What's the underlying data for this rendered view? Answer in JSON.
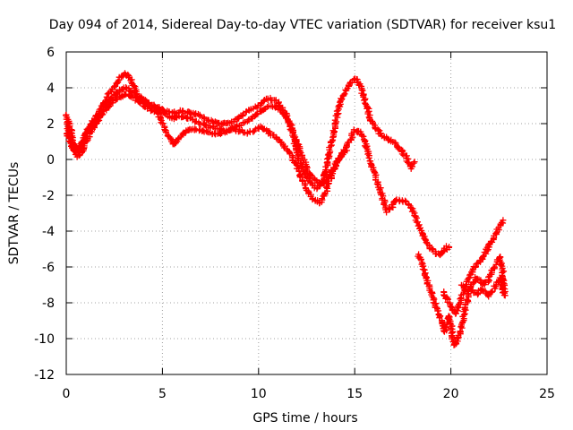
{
  "chart_data": {
    "type": "scatter",
    "title": "Day 094 of 2014, Sidereal Day-to-day VTEC variation (SDTVAR) for receiver ksu1",
    "xlabel": "GPS time / hours",
    "ylabel": "SDTVAR / TECUs",
    "xlim": [
      0,
      25
    ],
    "ylim": [
      -12,
      6
    ],
    "xticks": [
      0,
      5,
      10,
      15,
      20,
      25
    ],
    "yticks": [
      -12,
      -10,
      -8,
      -6,
      -4,
      -2,
      0,
      2,
      4,
      6
    ],
    "grid": true,
    "marker": "plus",
    "color": "#ff0000",
    "series": [
      {
        "name": "track-1",
        "points": [
          [
            0.0,
            2.5
          ],
          [
            0.2,
            1.8
          ],
          [
            0.4,
            0.9
          ],
          [
            0.6,
            0.5
          ],
          [
            0.8,
            0.8
          ],
          [
            1.0,
            1.4
          ],
          [
            1.3,
            2.0
          ],
          [
            1.6,
            2.4
          ],
          [
            1.9,
            3.0
          ],
          [
            2.2,
            3.6
          ],
          [
            2.5,
            4.1
          ],
          [
            2.8,
            4.6
          ],
          [
            3.1,
            4.8
          ],
          [
            3.4,
            4.4
          ],
          [
            3.7,
            3.6
          ],
          [
            4.0,
            3.3
          ],
          [
            4.4,
            3.1
          ],
          [
            4.8,
            2.9
          ],
          [
            5.2,
            2.7
          ],
          [
            5.6,
            2.6
          ],
          [
            6.0,
            2.7
          ],
          [
            6.4,
            2.6
          ],
          [
            6.8,
            2.5
          ],
          [
            7.2,
            2.3
          ],
          [
            7.6,
            2.1
          ],
          [
            8.0,
            2.0
          ],
          [
            8.4,
            2.0
          ],
          [
            8.8,
            2.2
          ],
          [
            9.2,
            2.5
          ],
          [
            9.6,
            2.8
          ],
          [
            10.0,
            3.0
          ],
          [
            10.3,
            3.3
          ],
          [
            10.6,
            3.4
          ],
          [
            11.0,
            3.2
          ],
          [
            11.4,
            2.6
          ],
          [
            11.8,
            1.3
          ],
          [
            12.1,
            0.0
          ],
          [
            12.4,
            -0.8
          ],
          [
            12.7,
            -1.3
          ],
          [
            13.0,
            -1.6
          ],
          [
            13.3,
            -1.4
          ],
          [
            13.5,
            -0.6
          ],
          [
            13.7,
            0.5
          ],
          [
            13.9,
            1.5
          ],
          [
            14.1,
            2.6
          ],
          [
            14.3,
            3.3
          ],
          [
            14.6,
            4.0
          ],
          [
            14.9,
            4.4
          ],
          [
            15.1,
            4.5
          ],
          [
            15.3,
            4.1
          ],
          [
            15.5,
            3.4
          ],
          [
            15.7,
            2.7
          ],
          [
            15.9,
            2.0
          ],
          [
            16.2,
            1.6
          ],
          [
            16.5,
            1.3
          ],
          [
            16.8,
            1.1
          ],
          [
            17.1,
            0.9
          ],
          [
            17.4,
            0.5
          ],
          [
            17.7,
            0.1
          ],
          [
            17.9,
            -0.5
          ],
          [
            18.1,
            -0.1
          ]
        ]
      },
      {
        "name": "track-2",
        "points": [
          [
            0.0,
            1.5
          ],
          [
            0.2,
            1.0
          ],
          [
            0.4,
            0.5
          ],
          [
            0.6,
            0.2
          ],
          [
            0.8,
            0.4
          ],
          [
            1.0,
            0.9
          ],
          [
            1.3,
            1.6
          ],
          [
            1.6,
            2.1
          ],
          [
            1.9,
            2.6
          ],
          [
            2.2,
            3.0
          ],
          [
            2.5,
            3.3
          ],
          [
            2.8,
            3.5
          ],
          [
            3.1,
            3.6
          ],
          [
            3.4,
            3.5
          ],
          [
            3.7,
            3.3
          ],
          [
            4.0,
            3.0
          ],
          [
            4.4,
            2.8
          ],
          [
            4.8,
            2.5
          ],
          [
            5.1,
            1.8
          ],
          [
            5.4,
            1.1
          ],
          [
            5.6,
            0.8
          ],
          [
            5.9,
            1.2
          ],
          [
            6.2,
            1.6
          ],
          [
            6.6,
            1.7
          ],
          [
            7.0,
            1.6
          ],
          [
            7.4,
            1.5
          ],
          [
            7.8,
            1.4
          ],
          [
            8.2,
            1.5
          ],
          [
            8.6,
            1.7
          ],
          [
            9.0,
            1.6
          ],
          [
            9.4,
            1.5
          ],
          [
            9.8,
            1.6
          ],
          [
            10.1,
            1.8
          ],
          [
            10.4,
            1.6
          ],
          [
            10.8,
            1.3
          ],
          [
            11.2,
            0.9
          ],
          [
            11.6,
            0.4
          ],
          [
            12.0,
            -0.4
          ],
          [
            12.3,
            -1.2
          ],
          [
            12.6,
            -1.9
          ],
          [
            12.9,
            -2.3
          ],
          [
            13.2,
            -2.4
          ],
          [
            13.5,
            -1.8
          ],
          [
            13.8,
            -0.9
          ],
          [
            14.1,
            -0.1
          ],
          [
            14.3,
            0.2
          ],
          [
            14.5,
            0.6
          ],
          [
            14.8,
            1.2
          ],
          [
            15.0,
            1.6
          ],
          [
            15.3,
            1.5
          ],
          [
            15.5,
            1.1
          ],
          [
            15.7,
            0.4
          ],
          [
            15.9,
            -0.4
          ],
          [
            16.1,
            -1.0
          ],
          [
            16.3,
            -1.6
          ],
          [
            16.5,
            -2.3
          ],
          [
            16.7,
            -2.9
          ],
          [
            16.9,
            -2.7
          ],
          [
            17.1,
            -2.3
          ],
          [
            17.4,
            -2.3
          ],
          [
            17.7,
            -2.4
          ],
          [
            18.0,
            -2.8
          ],
          [
            18.3,
            -3.6
          ],
          [
            18.6,
            -4.4
          ],
          [
            18.9,
            -4.9
          ],
          [
            19.2,
            -5.2
          ],
          [
            19.5,
            -5.3
          ],
          [
            19.8,
            -4.9
          ],
          [
            20.0,
            -4.8
          ]
        ]
      },
      {
        "name": "track-3",
        "points": [
          [
            0.0,
            2.0
          ],
          [
            0.2,
            1.2
          ],
          [
            0.4,
            0.6
          ],
          [
            0.6,
            0.4
          ],
          [
            0.8,
            0.9
          ],
          [
            1.0,
            1.4
          ],
          [
            1.3,
            1.9
          ],
          [
            1.6,
            2.4
          ],
          [
            1.9,
            2.8
          ],
          [
            2.2,
            3.2
          ],
          [
            2.5,
            3.6
          ],
          [
            2.8,
            3.9
          ],
          [
            3.1,
            4.0
          ],
          [
            3.4,
            3.8
          ],
          [
            3.7,
            3.5
          ],
          [
            4.0,
            3.2
          ],
          [
            4.4,
            3.0
          ],
          [
            4.8,
            2.8
          ],
          [
            5.2,
            2.5
          ],
          [
            5.6,
            2.3
          ],
          [
            6.0,
            2.4
          ],
          [
            6.4,
            2.3
          ],
          [
            6.8,
            2.1
          ],
          [
            7.2,
            1.9
          ],
          [
            7.6,
            1.8
          ],
          [
            8.0,
            1.7
          ],
          [
            8.4,
            1.6
          ],
          [
            8.8,
            1.8
          ],
          [
            9.2,
            2.0
          ],
          [
            9.6,
            2.3
          ],
          [
            10.0,
            2.6
          ],
          [
            10.4,
            2.9
          ],
          [
            10.8,
            3.0
          ],
          [
            11.2,
            2.7
          ],
          [
            11.6,
            2.1
          ],
          [
            12.0,
            1.0
          ],
          [
            12.3,
            0.1
          ],
          [
            12.6,
            -0.7
          ],
          [
            12.9,
            -1.1
          ],
          [
            13.2,
            -1.4
          ],
          [
            13.5,
            -1.2
          ],
          [
            13.8,
            -0.7
          ],
          [
            14.1,
            -0.1
          ],
          [
            14.4,
            0.3
          ],
          [
            14.6,
            0.6
          ]
        ]
      },
      {
        "name": "track-4",
        "points": [
          [
            18.3,
            -5.3
          ],
          [
            18.5,
            -5.8
          ],
          [
            18.7,
            -6.5
          ],
          [
            18.9,
            -7.2
          ],
          [
            19.1,
            -7.8
          ],
          [
            19.3,
            -8.5
          ],
          [
            19.5,
            -9.0
          ],
          [
            19.7,
            -9.6
          ],
          [
            19.8,
            -9.3
          ],
          [
            19.9,
            -8.7
          ],
          [
            20.0,
            -9.2
          ],
          [
            20.1,
            -10.0
          ],
          [
            20.2,
            -10.4
          ],
          [
            20.3,
            -10.2
          ],
          [
            20.5,
            -9.6
          ],
          [
            20.7,
            -8.6
          ],
          [
            20.9,
            -7.6
          ],
          [
            21.1,
            -7.0
          ],
          [
            21.3,
            -6.6
          ],
          [
            21.5,
            -6.8
          ],
          [
            21.7,
            -7.0
          ],
          [
            21.9,
            -6.8
          ],
          [
            22.1,
            -6.4
          ],
          [
            22.3,
            -5.9
          ],
          [
            22.5,
            -5.4
          ],
          [
            22.7,
            -6.2
          ],
          [
            22.8,
            -7.5
          ]
        ]
      },
      {
        "name": "track-5",
        "points": [
          [
            19.6,
            -7.4
          ],
          [
            19.8,
            -7.8
          ],
          [
            20.0,
            -8.2
          ],
          [
            20.2,
            -8.6
          ],
          [
            20.4,
            -8.2
          ],
          [
            20.6,
            -7.6
          ],
          [
            20.8,
            -7.0
          ],
          [
            21.0,
            -6.5
          ],
          [
            21.2,
            -6.1
          ],
          [
            21.4,
            -5.8
          ],
          [
            21.6,
            -5.6
          ],
          [
            21.8,
            -5.2
          ],
          [
            22.0,
            -4.8
          ],
          [
            22.2,
            -4.4
          ],
          [
            22.4,
            -4.0
          ],
          [
            22.6,
            -3.6
          ],
          [
            22.8,
            -3.4
          ]
        ]
      },
      {
        "name": "track-6",
        "points": [
          [
            20.6,
            -7.0
          ],
          [
            20.8,
            -7.3
          ],
          [
            21.0,
            -7.2
          ],
          [
            21.2,
            -7.4
          ],
          [
            21.4,
            -7.5
          ],
          [
            21.6,
            -7.2
          ],
          [
            21.8,
            -7.4
          ],
          [
            22.0,
            -7.6
          ],
          [
            22.2,
            -7.3
          ],
          [
            22.4,
            -6.9
          ],
          [
            22.6,
            -6.6
          ],
          [
            22.8,
            -7.7
          ]
        ]
      }
    ]
  }
}
